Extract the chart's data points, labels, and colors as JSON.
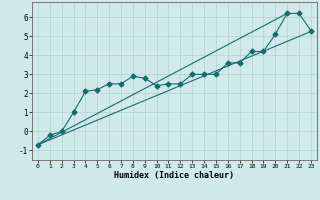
{
  "title": "",
  "xlabel": "Humidex (Indice chaleur)",
  "ylabel": "",
  "bg_color": "#d0eaeb",
  "grid_color": "#b8d4d5",
  "line_color": "#1a6b6b",
  "xlim": [
    -0.5,
    23.5
  ],
  "ylim": [
    -1.5,
    6.8
  ],
  "xticks": [
    0,
    1,
    2,
    3,
    4,
    5,
    6,
    7,
    8,
    9,
    10,
    11,
    12,
    13,
    14,
    15,
    16,
    17,
    18,
    19,
    20,
    21,
    22,
    23
  ],
  "yticks": [
    -1,
    0,
    1,
    2,
    3,
    4,
    5,
    6
  ],
  "line1_x": [
    0,
    1,
    2,
    3,
    4,
    5,
    6,
    7,
    8,
    9,
    10,
    11,
    12,
    13,
    14,
    15,
    16,
    17,
    18,
    19,
    20,
    21,
    22,
    23
  ],
  "line1_y": [
    -0.7,
    -0.2,
    0.0,
    1.0,
    2.1,
    2.2,
    2.5,
    2.5,
    2.9,
    2.8,
    2.4,
    2.5,
    2.5,
    3.0,
    3.0,
    3.0,
    3.6,
    3.6,
    4.2,
    4.2,
    5.1,
    6.2,
    6.2,
    5.3
  ],
  "line2_x": [
    0,
    23
  ],
  "line2_y": [
    -0.7,
    5.25
  ],
  "line3_x": [
    0,
    21
  ],
  "line3_y": [
    -0.7,
    6.2
  ],
  "marker": "D",
  "markersize": 2.5
}
